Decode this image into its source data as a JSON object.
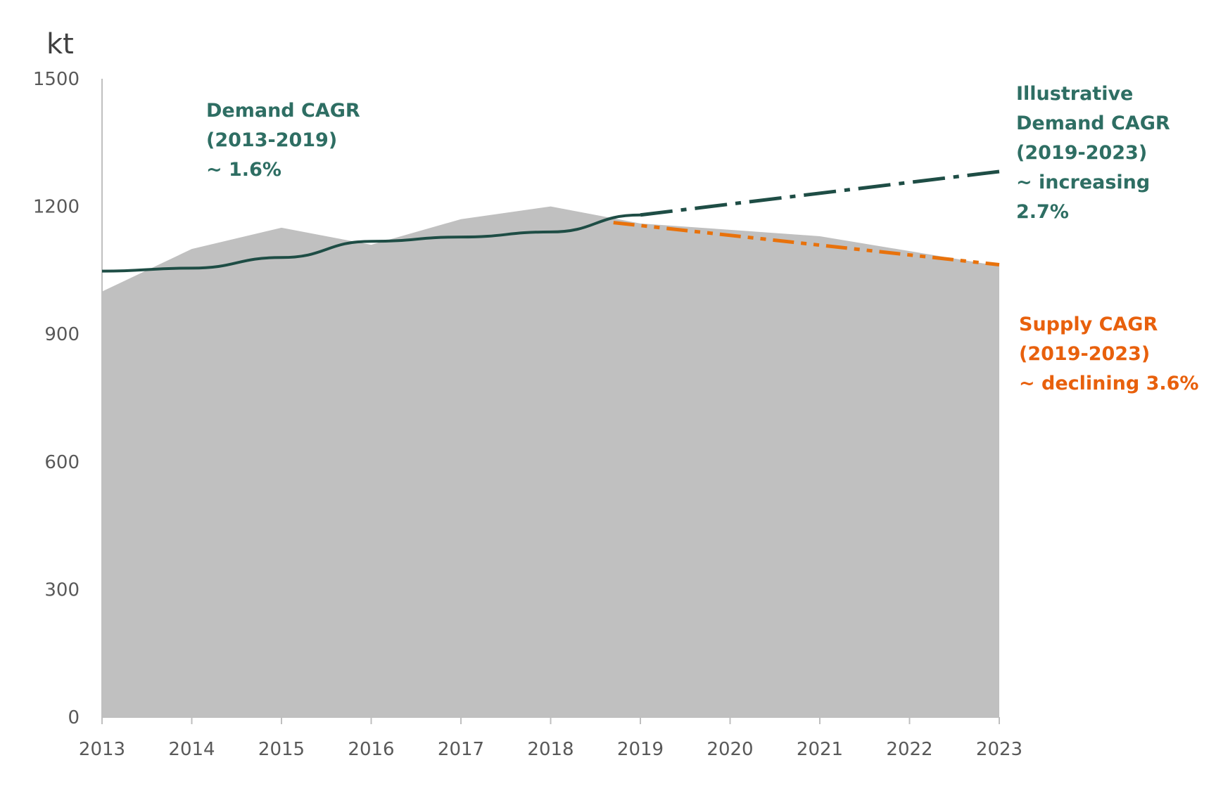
{
  "chart_data": {
    "type": "area",
    "title": "",
    "xlabel": "",
    "ylabel": "kt",
    "ylim": [
      0,
      1500
    ],
    "yticks": [
      "0",
      "300",
      "600",
      "900",
      "1200",
      "1500"
    ],
    "x": [
      "2013",
      "2014",
      "2015",
      "2016",
      "2017",
      "2018",
      "2019",
      "2020",
      "2021",
      "2022",
      "2023"
    ],
    "grid": false,
    "legend": "none",
    "series": [
      {
        "kind": "area",
        "values": [
          1000,
          1100,
          1150,
          1110,
          1170,
          1200,
          1160,
          1145,
          1130,
          1095,
          1060
        ],
        "color": "#c0c0c0"
      },
      {
        "kind": "line",
        "x": [
          "2013",
          "2014",
          "2015",
          "2016",
          "2017",
          "2018",
          "2019"
        ],
        "values": [
          1048,
          1055,
          1080,
          1118,
          1128,
          1140,
          1180
        ],
        "color": "#1e4d45",
        "style": "solid"
      },
      {
        "kind": "line",
        "x": [
          "2019",
          "2023"
        ],
        "values": [
          1180,
          1282
        ],
        "color": "#1e4d45",
        "style": "dash-dot"
      },
      {
        "kind": "line",
        "x": [
          "2018.7",
          "2023"
        ],
        "values": [
          1162,
          1063
        ],
        "color": "#e8720c",
        "style": "dash-dot-dot"
      }
    ],
    "annotations": {
      "demand_hist": [
        "Demand CAGR",
        "(2013-2019)",
        "~ 1.6%"
      ],
      "demand_proj": [
        "Illustrative",
        "Demand CAGR",
        "(2019-2023)",
        "~ increasing",
        "2.7%"
      ],
      "supply_proj": [
        "Supply CAGR",
        "(2019-2023)",
        "~ declining 3.6%"
      ]
    },
    "colors": {
      "demand": "#2e6e63",
      "supply": "#e8600c",
      "area": "#c0c0c0",
      "axis": "#bfbfbf"
    }
  }
}
